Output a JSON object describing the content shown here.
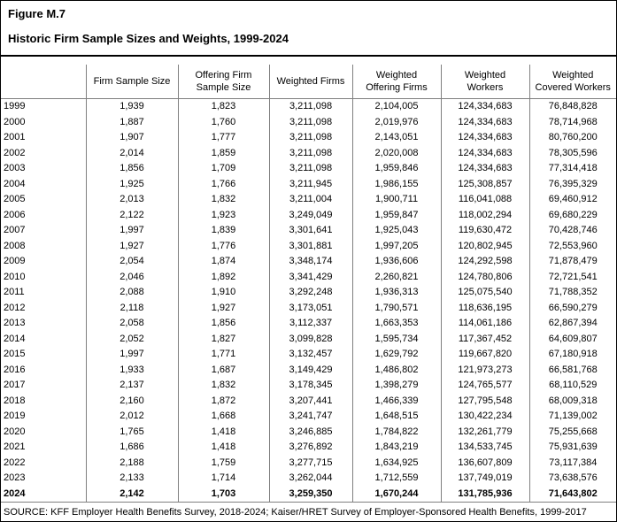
{
  "header": {
    "figure_label": "Figure M.7",
    "title": "Historic Firm Sample Sizes and Weights, 1999-2024"
  },
  "footer": {
    "source": "SOURCE: KFF Employer Health Benefits Survey, 2018-2024; Kaiser/HRET Survey of Employer-Sponsored Health Benefits, 1999-2017"
  },
  "chart_data": {
    "type": "table",
    "figure_label": "Figure M.7",
    "title": "Historic Firm Sample Sizes and Weights, 1999-2024",
    "columns": [
      "",
      "Firm Sample Size",
      "Offering Firm\nSample Size",
      "Weighted Firms",
      "Weighted\nOffering Firms",
      "Weighted\nWorkers",
      "Weighted\nCovered Workers"
    ],
    "rows": [
      {
        "year": "1999",
        "values": [
          "1,939",
          "1,823",
          "3,211,098",
          "2,104,005",
          "124,334,683",
          "76,848,828"
        ],
        "bold": false
      },
      {
        "year": "2000",
        "values": [
          "1,887",
          "1,760",
          "3,211,098",
          "2,019,976",
          "124,334,683",
          "78,714,968"
        ],
        "bold": false
      },
      {
        "year": "2001",
        "values": [
          "1,907",
          "1,777",
          "3,211,098",
          "2,143,051",
          "124,334,683",
          "80,760,200"
        ],
        "bold": false
      },
      {
        "year": "2002",
        "values": [
          "2,014",
          "1,859",
          "3,211,098",
          "2,020,008",
          "124,334,683",
          "78,305,596"
        ],
        "bold": false
      },
      {
        "year": "2003",
        "values": [
          "1,856",
          "1,709",
          "3,211,098",
          "1,959,846",
          "124,334,683",
          "77,314,418"
        ],
        "bold": false
      },
      {
        "year": "2004",
        "values": [
          "1,925",
          "1,766",
          "3,211,945",
          "1,986,155",
          "125,308,857",
          "76,395,329"
        ],
        "bold": false
      },
      {
        "year": "2005",
        "values": [
          "2,013",
          "1,832",
          "3,211,004",
          "1,900,711",
          "116,041,088",
          "69,460,912"
        ],
        "bold": false
      },
      {
        "year": "2006",
        "values": [
          "2,122",
          "1,923",
          "3,249,049",
          "1,959,847",
          "118,002,294",
          "69,680,229"
        ],
        "bold": false
      },
      {
        "year": "2007",
        "values": [
          "1,997",
          "1,839",
          "3,301,641",
          "1,925,043",
          "119,630,472",
          "70,428,746"
        ],
        "bold": false
      },
      {
        "year": "2008",
        "values": [
          "1,927",
          "1,776",
          "3,301,881",
          "1,997,205",
          "120,802,945",
          "72,553,960"
        ],
        "bold": false
      },
      {
        "year": "2009",
        "values": [
          "2,054",
          "1,874",
          "3,348,174",
          "1,936,606",
          "124,292,598",
          "71,878,479"
        ],
        "bold": false
      },
      {
        "year": "2010",
        "values": [
          "2,046",
          "1,892",
          "3,341,429",
          "2,260,821",
          "124,780,806",
          "72,721,541"
        ],
        "bold": false
      },
      {
        "year": "2011",
        "values": [
          "2,088",
          "1,910",
          "3,292,248",
          "1,936,313",
          "125,075,540",
          "71,788,352"
        ],
        "bold": false
      },
      {
        "year": "2012",
        "values": [
          "2,118",
          "1,927",
          "3,173,051",
          "1,790,571",
          "118,636,195",
          "66,590,279"
        ],
        "bold": false
      },
      {
        "year": "2013",
        "values": [
          "2,058",
          "1,856",
          "3,112,337",
          "1,663,353",
          "114,061,186",
          "62,867,394"
        ],
        "bold": false
      },
      {
        "year": "2014",
        "values": [
          "2,052",
          "1,827",
          "3,099,828",
          "1,595,734",
          "117,367,452",
          "64,609,807"
        ],
        "bold": false
      },
      {
        "year": "2015",
        "values": [
          "1,997",
          "1,771",
          "3,132,457",
          "1,629,792",
          "119,667,820",
          "67,180,918"
        ],
        "bold": false
      },
      {
        "year": "2016",
        "values": [
          "1,933",
          "1,687",
          "3,149,429",
          "1,486,802",
          "121,973,273",
          "66,581,768"
        ],
        "bold": false
      },
      {
        "year": "2017",
        "values": [
          "2,137",
          "1,832",
          "3,178,345",
          "1,398,279",
          "124,765,577",
          "68,110,529"
        ],
        "bold": false
      },
      {
        "year": "2018",
        "values": [
          "2,160",
          "1,872",
          "3,207,441",
          "1,466,339",
          "127,795,548",
          "68,009,318"
        ],
        "bold": false
      },
      {
        "year": "2019",
        "values": [
          "2,012",
          "1,668",
          "3,241,747",
          "1,648,515",
          "130,422,234",
          "71,139,002"
        ],
        "bold": false
      },
      {
        "year": "2020",
        "values": [
          "1,765",
          "1,418",
          "3,246,885",
          "1,784,822",
          "132,261,779",
          "75,255,668"
        ],
        "bold": false
      },
      {
        "year": "2021",
        "values": [
          "1,686",
          "1,418",
          "3,276,892",
          "1,843,219",
          "134,533,745",
          "75,931,639"
        ],
        "bold": false
      },
      {
        "year": "2022",
        "values": [
          "2,188",
          "1,759",
          "3,277,715",
          "1,634,925",
          "136,607,809",
          "73,117,384"
        ],
        "bold": false
      },
      {
        "year": "2023",
        "values": [
          "2,133",
          "1,714",
          "3,262,044",
          "1,712,559",
          "137,749,019",
          "73,638,576"
        ],
        "bold": false
      },
      {
        "year": "2024",
        "values": [
          "2,142",
          "1,703",
          "3,259,350",
          "1,670,244",
          "131,785,936",
          "71,643,802"
        ],
        "bold": true
      }
    ]
  }
}
